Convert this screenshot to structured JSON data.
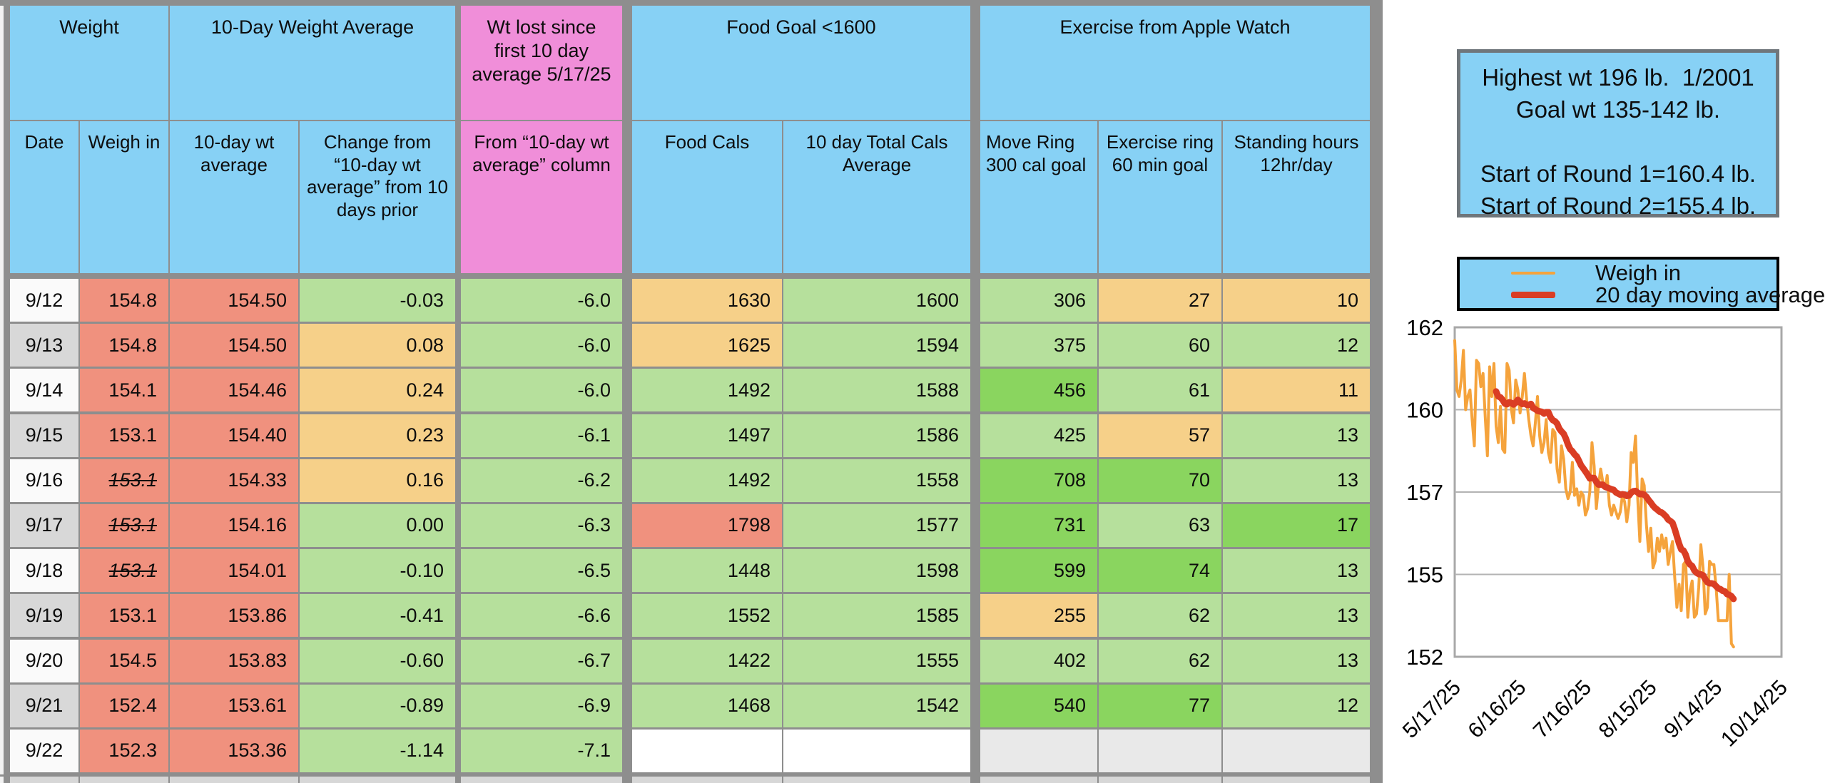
{
  "colors": {
    "blue": "#87D1F5",
    "pink": "#F08ED9",
    "salmon": "#F0917E",
    "lightgreen": "#B6E09C",
    "brightgreen": "#8AD55F",
    "orange": "#F6D089",
    "blank": "#FFFFFF",
    "empty": "#E9E9E9",
    "grid": "#8E8E8E",
    "date_white": "#FAFAFA",
    "date_grey": "#D8D8D8",
    "partial": "#D7D7D7"
  },
  "table": {
    "group_headers": [
      {
        "label": "Weight"
      },
      {
        "label": "10-Day Weight Average"
      },
      {
        "label": "Wt lost since first 10 day average 5/17/25"
      },
      {
        "label": "Food Goal <1600"
      },
      {
        "label": "Exercise from Apple Watch"
      }
    ],
    "sub_headers": [
      "Date",
      "Weigh in",
      "10-day wt average",
      "Change from “10-day wt average” from 10 days prior",
      "From “10-day wt average” column",
      "Food Cals",
      "10 day Total Cals Average",
      "Move Ring 300 cal goal",
      "Exercise ring 60 min goal",
      "Standing hours 12hr/day"
    ],
    "rows": [
      {
        "date": "9/12",
        "date_bg": "white",
        "strike": false,
        "values": [
          "154.8",
          "154.50",
          "-0.03",
          "-6.0",
          "1630",
          "1600",
          "306",
          "27",
          "10"
        ],
        "bgs": [
          "salmon",
          "salmon",
          "lightgreen",
          "lightgreen",
          "orange",
          "lightgreen",
          "lightgreen",
          "orange",
          "orange"
        ]
      },
      {
        "date": "9/13",
        "date_bg": "grey",
        "strike": false,
        "values": [
          "154.8",
          "154.50",
          "0.08",
          "-6.0",
          "1625",
          "1594",
          "375",
          "60",
          "12"
        ],
        "bgs": [
          "salmon",
          "salmon",
          "orange",
          "lightgreen",
          "orange",
          "lightgreen",
          "lightgreen",
          "lightgreen",
          "lightgreen"
        ]
      },
      {
        "date": "9/14",
        "date_bg": "white",
        "strike": false,
        "values": [
          "154.1",
          "154.46",
          "0.24",
          "-6.0",
          "1492",
          "1588",
          "456",
          "61",
          "11"
        ],
        "bgs": [
          "salmon",
          "salmon",
          "orange",
          "lightgreen",
          "lightgreen",
          "lightgreen",
          "brightgreen",
          "lightgreen",
          "orange"
        ]
      },
      {
        "date": "9/15",
        "date_bg": "grey",
        "strike": false,
        "values": [
          "153.1",
          "154.40",
          "0.23",
          "-6.1",
          "1497",
          "1586",
          "425",
          "57",
          "13"
        ],
        "bgs": [
          "salmon",
          "salmon",
          "orange",
          "lightgreen",
          "lightgreen",
          "lightgreen",
          "lightgreen",
          "orange",
          "lightgreen"
        ]
      },
      {
        "date": "9/16",
        "date_bg": "white",
        "strike": true,
        "values": [
          "153.1",
          "154.33",
          "0.16",
          "-6.2",
          "1492",
          "1558",
          "708",
          "70",
          "13"
        ],
        "bgs": [
          "salmon",
          "salmon",
          "orange",
          "lightgreen",
          "lightgreen",
          "lightgreen",
          "brightgreen",
          "brightgreen",
          "lightgreen"
        ]
      },
      {
        "date": "9/17",
        "date_bg": "grey",
        "strike": true,
        "values": [
          "153.1",
          "154.16",
          "0.00",
          "-6.3",
          "1798",
          "1577",
          "731",
          "63",
          "17"
        ],
        "bgs": [
          "salmon",
          "salmon",
          "lightgreen",
          "lightgreen",
          "salmon",
          "lightgreen",
          "brightgreen",
          "lightgreen",
          "brightgreen"
        ]
      },
      {
        "date": "9/18",
        "date_bg": "white",
        "strike": true,
        "values": [
          "153.1",
          "154.01",
          "-0.10",
          "-6.5",
          "1448",
          "1598",
          "599",
          "74",
          "13"
        ],
        "bgs": [
          "salmon",
          "salmon",
          "lightgreen",
          "lightgreen",
          "lightgreen",
          "lightgreen",
          "brightgreen",
          "brightgreen",
          "lightgreen"
        ]
      },
      {
        "date": "9/19",
        "date_bg": "grey",
        "strike": false,
        "values": [
          "153.1",
          "153.86",
          "-0.41",
          "-6.6",
          "1552",
          "1585",
          "255",
          "62",
          "13"
        ],
        "bgs": [
          "salmon",
          "salmon",
          "lightgreen",
          "lightgreen",
          "lightgreen",
          "lightgreen",
          "orange",
          "lightgreen",
          "lightgreen"
        ]
      },
      {
        "date": "9/20",
        "date_bg": "white",
        "strike": false,
        "values": [
          "154.5",
          "153.83",
          "-0.60",
          "-6.7",
          "1422",
          "1555",
          "402",
          "62",
          "13"
        ],
        "bgs": [
          "salmon",
          "salmon",
          "lightgreen",
          "lightgreen",
          "lightgreen",
          "lightgreen",
          "lightgreen",
          "lightgreen",
          "lightgreen"
        ]
      },
      {
        "date": "9/21",
        "date_bg": "grey",
        "strike": false,
        "values": [
          "152.4",
          "153.61",
          "-0.89",
          "-6.9",
          "1468",
          "1542",
          "540",
          "77",
          "12"
        ],
        "bgs": [
          "salmon",
          "salmon",
          "lightgreen",
          "lightgreen",
          "lightgreen",
          "lightgreen",
          "brightgreen",
          "brightgreen",
          "lightgreen"
        ]
      },
      {
        "date": "9/22",
        "date_bg": "white",
        "strike": false,
        "values": [
          "152.3",
          "153.36",
          "-1.14",
          "-7.1",
          "",
          "",
          "",
          "",
          ""
        ],
        "bgs": [
          "salmon",
          "salmon",
          "lightgreen",
          "lightgreen",
          "blank",
          "blank",
          "empty",
          "empty",
          "empty"
        ]
      }
    ]
  },
  "panel": {
    "info_lines": [
      "Highest wt 196 lb.  1/2001",
      "Goal wt 135-142 lb.",
      "",
      "Start of Round 1=160.4 lb.",
      "Start of Round 2=155.4 lb."
    ]
  },
  "chart_data": {
    "type": "line",
    "title": "",
    "grid": true,
    "legend_position": "top",
    "x_tick_labels": [
      "5/17/25",
      "6/16/25",
      "7/16/25",
      "8/15/25",
      "9/14/25",
      "10/14/25"
    ],
    "x_tick_days": [
      0,
      30,
      60,
      90,
      120,
      150
    ],
    "x_range_days": [
      0,
      150
    ],
    "y_axis": {
      "min": 152,
      "max": 162,
      "tick_values": [
        162,
        159.5,
        157,
        154.5,
        152
      ],
      "tick_labels": [
        "162",
        "160",
        "157",
        "155",
        "152"
      ]
    },
    "series": [
      {
        "name": "Weigh in",
        "color": "#F5A33C",
        "width": 4,
        "start_day": 0,
        "values": [
          161.6,
          160.1,
          159.9,
          160.4,
          161.3,
          159.5,
          159.9,
          160.1,
          159.2,
          158.4,
          161.0,
          160.9,
          160.2,
          160.6,
          159.3,
          158.1,
          160.8,
          159.9,
          160.9,
          159.0,
          158.5,
          159.6,
          158.3,
          158.2,
          160.9,
          160.7,
          159.5,
          159.1,
          160.4,
          160.1,
          159.4,
          159.9,
          160.6,
          159.8,
          159.2,
          158.7,
          158.4,
          159.1,
          159.9,
          158.7,
          158.2,
          158.5,
          159.2,
          158.2,
          157.9,
          158.9,
          158.8,
          157.7,
          157.3,
          158.4,
          158.0,
          157.1,
          156.8,
          157.0,
          157.9,
          156.9,
          157.1,
          156.6,
          157.0,
          156.9,
          156.3,
          156.5,
          157.0,
          158.5,
          157.8,
          156.5,
          157.2,
          157.7,
          157.3,
          157.1,
          157.5,
          156.6,
          156.3,
          156.6,
          156.4,
          156.2,
          156.4,
          156.9,
          156.7,
          156.1,
          156.6,
          158.2,
          157.9,
          158.7,
          156.8,
          155.5,
          157.4,
          157.2,
          156.0,
          155.2,
          155.9,
          154.7,
          154.9,
          155.6,
          155.2,
          155.7,
          155.3,
          155.6,
          154.8,
          155.2,
          155.5,
          154.4,
          153.5,
          154.2,
          153.4,
          154.8,
          154.9,
          153.2,
          154.0,
          154.3,
          153.2,
          153.3,
          154.1,
          155.4,
          154.7,
          153.3,
          153.5,
          154.9,
          154.8,
          154.8,
          154.1,
          153.1,
          153.1,
          153.1,
          153.1,
          153.1,
          154.5,
          152.4,
          152.3
        ]
      },
      {
        "name": "20 day moving average",
        "color": "#DA3D24",
        "width": 9,
        "derived_from": "Weigh in",
        "window": 20
      }
    ]
  }
}
